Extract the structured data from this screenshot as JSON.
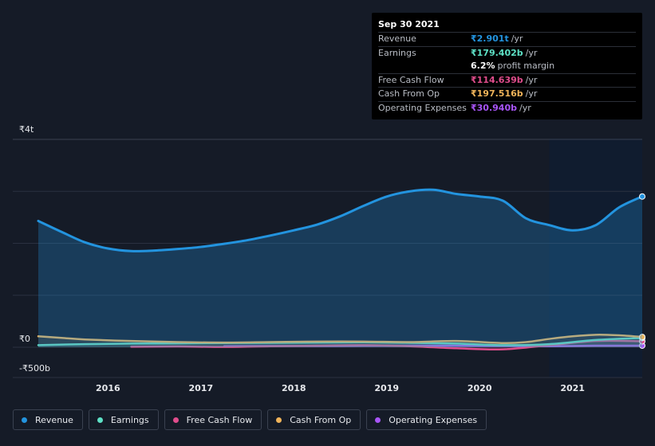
{
  "tooltip": {
    "date": "Sep 30 2021",
    "rows": [
      {
        "label": "Revenue",
        "value": "₹2.901t",
        "unit": "/yr",
        "color": "#2394df"
      },
      {
        "label": "Earnings",
        "value": "₹179.402b",
        "unit": "/yr",
        "color": "#5ee1c6"
      },
      {
        "label": "",
        "value": "6.2%",
        "unit": "profit margin",
        "color": "#ffffff"
      },
      {
        "label": "Free Cash Flow",
        "value": "₹114.639b",
        "unit": "/yr",
        "color": "#e04d8c"
      },
      {
        "label": "Cash From Op",
        "value": "₹197.516b",
        "unit": "/yr",
        "color": "#f0b45a"
      },
      {
        "label": "Operating Expenses",
        "value": "₹30.940b",
        "unit": "/yr",
        "color": "#a855f7"
      }
    ]
  },
  "legend": [
    {
      "label": "Revenue",
      "color": "#2394df"
    },
    {
      "label": "Earnings",
      "color": "#5ee1c6"
    },
    {
      "label": "Free Cash Flow",
      "color": "#e04d8c"
    },
    {
      "label": "Cash From Op",
      "color": "#f0b45a"
    },
    {
      "label": "Operating Expenses",
      "color": "#a855f7"
    }
  ],
  "chart_data": {
    "type": "area",
    "title": "",
    "xlabel": "",
    "ylabel": "",
    "unit": "₹ billions",
    "xlim": [
      2015.25,
      2021.75
    ],
    "ylim": [
      -500,
      4000
    ],
    "y_tick_labels": [
      {
        "value": 4000,
        "label": "₹4t"
      },
      {
        "value": 0,
        "label": "₹0"
      },
      {
        "value": -500,
        "label": "-₹500b"
      }
    ],
    "x_ticks": [
      2016,
      2017,
      2018,
      2019,
      2020,
      2021
    ],
    "grid": true,
    "highlight_start": 2020.75,
    "series": [
      {
        "name": "Revenue",
        "color": "#2394df",
        "fill": true,
        "points": [
          [
            2015.25,
            2430
          ],
          [
            2015.5,
            2220
          ],
          [
            2015.75,
            2020
          ],
          [
            2016.0,
            1900
          ],
          [
            2016.25,
            1850
          ],
          [
            2016.5,
            1860
          ],
          [
            2016.75,
            1890
          ],
          [
            2017.0,
            1930
          ],
          [
            2017.25,
            1990
          ],
          [
            2017.5,
            2060
          ],
          [
            2017.75,
            2150
          ],
          [
            2018.0,
            2250
          ],
          [
            2018.25,
            2360
          ],
          [
            2018.5,
            2520
          ],
          [
            2018.75,
            2720
          ],
          [
            2019.0,
            2900
          ],
          [
            2019.25,
            3000
          ],
          [
            2019.5,
            3030
          ],
          [
            2019.75,
            2950
          ],
          [
            2020.0,
            2900
          ],
          [
            2020.25,
            2820
          ],
          [
            2020.5,
            2480
          ],
          [
            2020.75,
            2350
          ],
          [
            2021.0,
            2250
          ],
          [
            2021.25,
            2350
          ],
          [
            2021.5,
            2690
          ],
          [
            2021.75,
            2901
          ]
        ]
      },
      {
        "name": "Earnings",
        "color": "#5ee1c6",
        "fill": false,
        "points": [
          [
            2015.25,
            40
          ],
          [
            2015.75,
            60
          ],
          [
            2016.25,
            70
          ],
          [
            2016.75,
            75
          ],
          [
            2017.25,
            80
          ],
          [
            2017.75,
            85
          ],
          [
            2018.25,
            90
          ],
          [
            2018.75,
            95
          ],
          [
            2019.25,
            85
          ],
          [
            2019.75,
            70
          ],
          [
            2020.25,
            40
          ],
          [
            2020.75,
            60
          ],
          [
            2021.25,
            140
          ],
          [
            2021.75,
            179
          ]
        ]
      },
      {
        "name": "Free Cash Flow",
        "color": "#e04d8c",
        "fill": false,
        "points": [
          [
            2016.25,
            10
          ],
          [
            2016.75,
            15
          ],
          [
            2017.25,
            5
          ],
          [
            2017.75,
            20
          ],
          [
            2018.25,
            30
          ],
          [
            2018.75,
            40
          ],
          [
            2019.25,
            20
          ],
          [
            2019.75,
            -20
          ],
          [
            2020.25,
            -40
          ],
          [
            2020.75,
            40
          ],
          [
            2021.25,
            120
          ],
          [
            2021.75,
            115
          ]
        ]
      },
      {
        "name": "Cash From Op",
        "color": "#f0b45a",
        "fill": false,
        "points": [
          [
            2015.25,
            210
          ],
          [
            2015.5,
            180
          ],
          [
            2015.75,
            150
          ],
          [
            2016.25,
            120
          ],
          [
            2016.75,
            100
          ],
          [
            2017.25,
            90
          ],
          [
            2017.75,
            100
          ],
          [
            2018.25,
            110
          ],
          [
            2018.75,
            110
          ],
          [
            2019.25,
            100
          ],
          [
            2019.75,
            120
          ],
          [
            2020.25,
            80
          ],
          [
            2020.5,
            100
          ],
          [
            2020.75,
            160
          ],
          [
            2021.0,
            210
          ],
          [
            2021.25,
            240
          ],
          [
            2021.5,
            230
          ],
          [
            2021.75,
            198
          ]
        ]
      },
      {
        "name": "Operating Expenses",
        "color": "#a855f7",
        "fill": false,
        "points": [
          [
            2017.25,
            20
          ],
          [
            2017.75,
            25
          ],
          [
            2018.25,
            25
          ],
          [
            2018.75,
            30
          ],
          [
            2019.25,
            30
          ],
          [
            2019.75,
            30
          ],
          [
            2020.25,
            25
          ],
          [
            2020.75,
            20
          ],
          [
            2021.25,
            30
          ],
          [
            2021.75,
            31
          ]
        ]
      }
    ]
  }
}
